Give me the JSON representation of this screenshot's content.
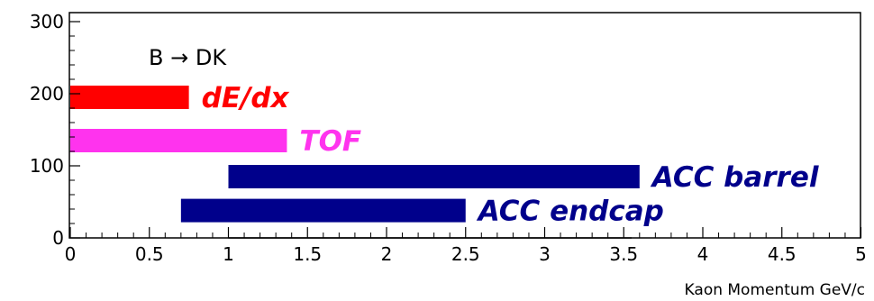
{
  "chart_data": {
    "type": "area",
    "title": "",
    "annotation": "B → DK",
    "xlabel": "Kaon Momentum  GeV/c",
    "ylabel": "",
    "xlim": [
      0,
      5
    ],
    "ylim": [
      0,
      310
    ],
    "x_ticks": [
      "0",
      "0.5",
      "1",
      "1.5",
      "2",
      "2.5",
      "3",
      "3.5",
      "4",
      "4.5",
      "5"
    ],
    "y_ticks": [
      "0",
      "100",
      "200",
      "300"
    ],
    "grid": false,
    "histogram": {
      "bin_edges": [
        1.0,
        1.05,
        1.1,
        1.15,
        1.2,
        1.25,
        1.3,
        1.35,
        1.4,
        1.45,
        1.5,
        1.55,
        1.6,
        1.65,
        1.7,
        1.75,
        1.8,
        1.85,
        1.9,
        1.95,
        2.0,
        2.05,
        2.1,
        2.15,
        2.2,
        2.25,
        2.3,
        2.35,
        2.4,
        2.45,
        2.5,
        2.55,
        2.6,
        2.65,
        2.7,
        2.75,
        2.8,
        2.85,
        2.9,
        2.95,
        3.0,
        3.05,
        3.1,
        3.15,
        3.2,
        3.25,
        3.3,
        3.35,
        3.4,
        3.45,
        3.5,
        3.55
      ],
      "counts": [
        0,
        0,
        0,
        0,
        0,
        0,
        0,
        0,
        0,
        0,
        0,
        0,
        0,
        0,
        0,
        0,
        0,
        0,
        0,
        0,
        0,
        0,
        0,
        0,
        0,
        0,
        0,
        0,
        0,
        0,
        0,
        0,
        0,
        0,
        0,
        0,
        0,
        0,
        0,
        0,
        0,
        0,
        0,
        0,
        0,
        0,
        0,
        0,
        0,
        0,
        0
      ]
    },
    "ranges": [
      {
        "name": "dE/dx",
        "x_start": 0.0,
        "x_end": 0.75,
        "y": 195,
        "color": "#ff0000"
      },
      {
        "name": "TOF",
        "x_start": 0.0,
        "x_end": 1.37,
        "y": 135,
        "color": "#ff33ee"
      },
      {
        "name": "ACC barrel",
        "x_start": 1.0,
        "x_end": 3.6,
        "y": 85,
        "color": "#00008b"
      },
      {
        "name": "ACC endcap",
        "x_start": 0.7,
        "x_end": 2.5,
        "y": 38,
        "color": "#00008b"
      }
    ]
  }
}
